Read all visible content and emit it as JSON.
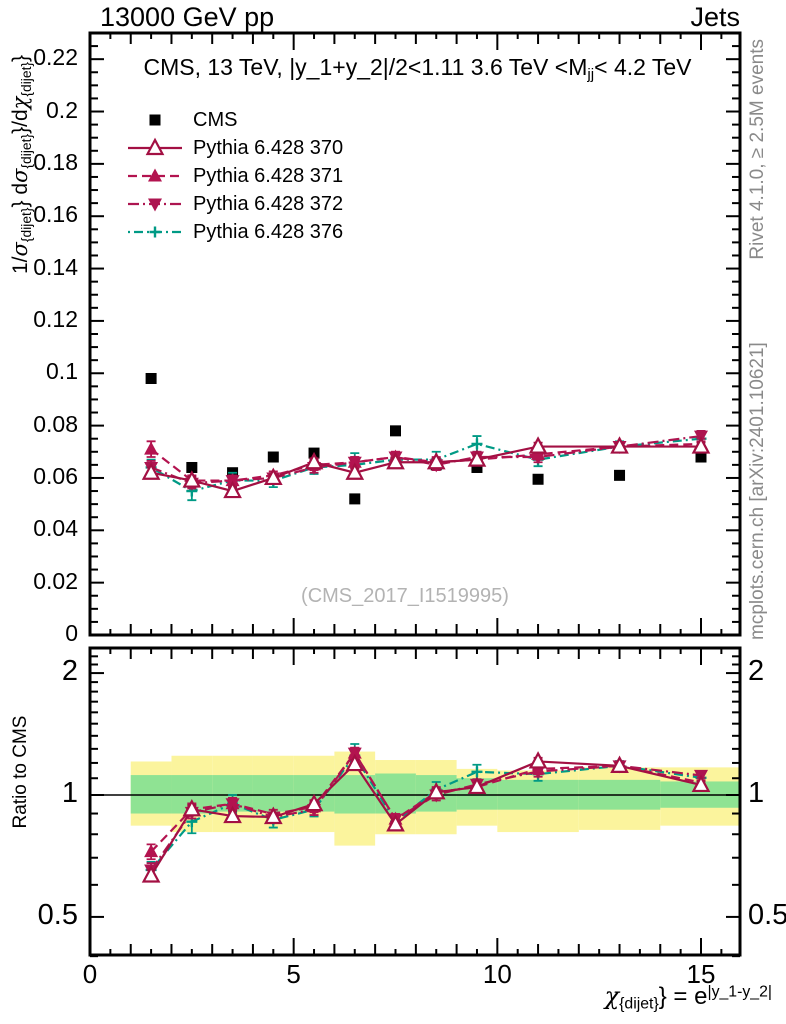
{
  "header": {
    "left": "13000 GeV pp",
    "right": "Jets"
  },
  "title_parts": [
    {
      "t": "CMS, 13 TeV, |y_1+y_2|/2<1.11 3.6 TeV <M"
    },
    {
      "t": "jj",
      "sub": 1
    },
    {
      "t": "< 4.2 TeV"
    }
  ],
  "watermark": "(CMS_2017_I1519995)",
  "side_notes": {
    "top": "Rivet 4.1.0, ≥ 2.5M events",
    "bottom": "mcplots.cern.ch [arXiv:2401.10621]"
  },
  "axes": {
    "main_y": {
      "max": 0.23,
      "major_step": 0.02,
      "minor_step": 0.005,
      "tick_values": [
        0,
        0.02,
        0.04,
        0.06,
        0.08,
        0.1,
        0.12,
        0.14,
        0.16,
        0.18,
        0.2,
        0.22
      ],
      "tick_labels": [
        "0",
        "0.02",
        "0.04",
        "0.06",
        "0.08",
        "0.1",
        "0.12",
        "0.14",
        "0.16",
        "0.18",
        "0.2",
        "0.22"
      ],
      "label_parts": [
        {
          "t": "1/"
        },
        {
          "t": "σ",
          "it": 1
        },
        {
          "t": "{dijet}",
          "sub": 1
        },
        {
          "t": "} d"
        },
        {
          "t": "σ",
          "it": 1
        },
        {
          "t": "{dijet}",
          "sub": 1
        },
        {
          "t": "}/d"
        },
        {
          "t": "χ",
          "it": 1
        },
        {
          "t": "{dijet}",
          "sub": 1
        },
        {
          "t": "}"
        }
      ]
    },
    "ratio_y": {
      "scale": "log",
      "label": "Ratio to CMS",
      "tick_values": [
        0.5,
        1,
        2
      ],
      "tick_labels": [
        "0.5",
        "1",
        "2"
      ],
      "minor_ticks": [
        0.4,
        0.6,
        0.7,
        0.8,
        0.9,
        1.1,
        1.2,
        1.3,
        1.4,
        1.5,
        1.6,
        1.7,
        1.8,
        1.9,
        2.1,
        2.2
      ],
      "min": 0.4,
      "max": 2.31
    },
    "x": {
      "min": 0,
      "max": 16,
      "tick_values": [
        0,
        5,
        10,
        15
      ],
      "tick_labels": [
        "0",
        "5",
        "10",
        "15"
      ],
      "minor_step": 0.5,
      "label_parts": [
        {
          "t": "χ",
          "it": 1
        },
        {
          "t": "{dijet}",
          "sub": 1
        },
        {
          "t": "} = e"
        },
        {
          "t": "|y_1-y_2|",
          "sup": 1
        }
      ]
    }
  },
  "chart_data": {
    "type": "line",
    "title": "CMS, 13 TeV, |y_1+y_2|/2<1.11 3.6 TeV <M_jj< 4.2 TeV",
    "xlabel": "χ_{dijet} = e^|y_1-y_2|",
    "ylabel": "1/σ_{dijet} dσ_{dijet}/dχ_{dijet}",
    "ylabel_ratio": "Ratio to CMS",
    "bin_edges": [
      1,
      2,
      3,
      4,
      5,
      6,
      7,
      8,
      9,
      10,
      12,
      14,
      16
    ],
    "x": [
      1.5,
      2.5,
      3.5,
      4.5,
      5.5,
      6.5,
      7.5,
      8.5,
      9.5,
      11,
      13,
      15
    ],
    "series": [
      {
        "name": "CMS",
        "marker": "square",
        "color": "#000000",
        "line": null,
        "values": [
          0.098,
          0.064,
          0.062,
          0.068,
          0.0695,
          0.052,
          0.078,
          0.065,
          0.064,
          0.0595,
          0.061,
          0.068
        ]
      },
      {
        "name": "Pythia 6.428 370",
        "marker": "triangle-open",
        "color": "#a31043",
        "line": "solid",
        "values": [
          0.062,
          0.059,
          0.055,
          0.06,
          0.066,
          0.062,
          0.066,
          0.066,
          0.067,
          0.072,
          0.072,
          0.072
        ],
        "errors": [
          0.002,
          0.0015,
          0.0015,
          0.0012,
          0.0015,
          0.0015,
          0.0015,
          0.0015,
          0.0015,
          0.0015,
          0.0012,
          0.0015
        ]
      },
      {
        "name": "Pythia 6.428 371",
        "marker": "triangle-up",
        "color": "#b3134f",
        "line": "dashed",
        "values": [
          0.071,
          0.059,
          0.059,
          0.061,
          0.065,
          0.066,
          0.068,
          0.066,
          0.067,
          0.069,
          0.072,
          0.073
        ],
        "errors": [
          0.003,
          0.002,
          0.002,
          0.0015,
          0.002,
          0.002,
          0.002,
          0.002,
          0.002,
          0.002,
          0.0015,
          0.002
        ]
      },
      {
        "name": "Pythia 6.428 372",
        "marker": "triangle-down",
        "color": "#ad1550",
        "line": "dashdot",
        "values": [
          0.064,
          0.058,
          0.059,
          0.06,
          0.064,
          0.066,
          0.068,
          0.065,
          0.068,
          0.068,
          0.072,
          0.076
        ],
        "errors": [
          0.0025,
          0.002,
          0.002,
          0.0015,
          0.002,
          0.002,
          0.002,
          0.002,
          0.002,
          0.002,
          0.0015,
          0.002
        ]
      },
      {
        "name": "Pythia 6.428 376",
        "marker": "plus",
        "color": "#009a85",
        "line": "dashdotdot",
        "values": [
          0.064,
          0.055,
          0.059,
          0.059,
          0.064,
          0.065,
          0.067,
          0.067,
          0.073,
          0.067,
          0.072,
          0.075
        ],
        "errors": [
          0.003,
          0.0035,
          0.003,
          0.0025,
          0.0025,
          0.0045,
          0.0025,
          0.003,
          0.003,
          0.0025,
          0.002,
          0.0025
        ]
      }
    ],
    "ratio": {
      "reference": 1,
      "bands": {
        "yellow_color": "#fbf49d",
        "green_color": "#8fe393",
        "yellow": [
          [
            0.84,
            1.21
          ],
          [
            0.81,
            1.25
          ],
          [
            0.81,
            1.25
          ],
          [
            0.81,
            1.25
          ],
          [
            0.81,
            1.25
          ],
          [
            0.75,
            1.28
          ],
          [
            0.8,
            1.22
          ],
          [
            0.8,
            1.22
          ],
          [
            0.84,
            1.16
          ],
          [
            0.81,
            1.15
          ],
          [
            0.82,
            1.17
          ],
          [
            0.84,
            1.17
          ]
        ],
        "green": [
          [
            0.9,
            1.12
          ],
          [
            0.9,
            1.12
          ],
          [
            0.91,
            1.12
          ],
          [
            0.91,
            1.12
          ],
          [
            0.91,
            1.12
          ],
          [
            0.9,
            1.12
          ],
          [
            0.9,
            1.13
          ],
          [
            0.91,
            1.12
          ],
          [
            0.92,
            1.1
          ],
          [
            0.92,
            1.09
          ],
          [
            0.92,
            1.09
          ],
          [
            0.93,
            1.08
          ]
        ]
      }
    }
  }
}
